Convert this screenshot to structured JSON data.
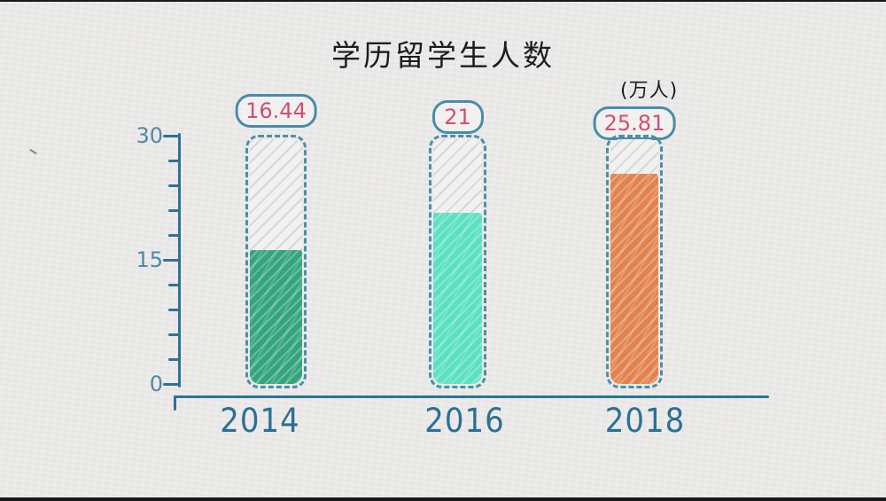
{
  "chart_data": {
    "type": "bar",
    "title": "学历留学生人数",
    "unit_label": "(万人)",
    "categories": [
      "2014",
      "2016",
      "2018"
    ],
    "values": [
      16.44,
      21,
      25.81
    ],
    "value_labels": [
      "16.44",
      "21",
      "25.81"
    ],
    "series": [
      {
        "name": "学历留学生人数",
        "values": [
          16.44,
          21,
          25.81
        ]
      }
    ],
    "xlabel": "",
    "ylabel": "",
    "ylim": [
      0,
      30
    ],
    "yticks_major": [
      30,
      15,
      0
    ],
    "ytick_labels": [
      "30",
      "15",
      "0"
    ],
    "minor_tick_step": 3,
    "grid": false,
    "legend": "none",
    "bar_colors": [
      "#34a47d",
      "#5be0c2",
      "#e2834f"
    ],
    "axis_color": "#2d7396",
    "ytick_label_color": "#4e8aa6",
    "value_text_color": "#cf4e7c",
    "pill_border_color": "#4a8ca8",
    "background_color": "#ecebe9",
    "style": "hand-drawn"
  }
}
